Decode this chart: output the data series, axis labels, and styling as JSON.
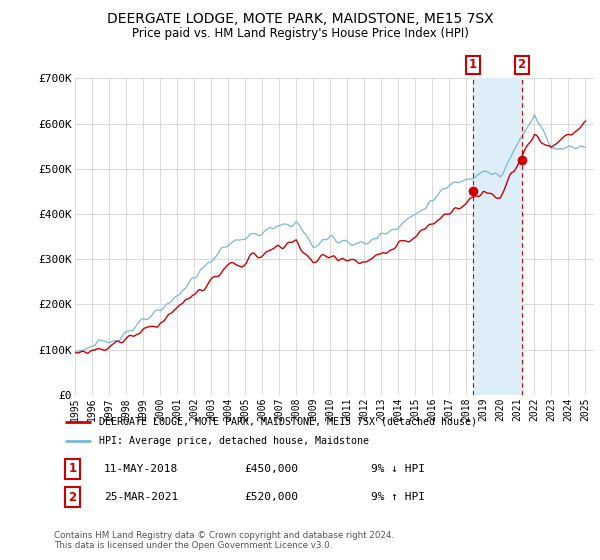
{
  "title": "DEERGATE LODGE, MOTE PARK, MAIDSTONE, ME15 7SX",
  "subtitle": "Price paid vs. HM Land Registry's House Price Index (HPI)",
  "legend_line1": "DEERGATE LODGE, MOTE PARK, MAIDSTONE, ME15 7SX (detached house)",
  "legend_line2": "HPI: Average price, detached house, Maidstone",
  "annotation1_date": "11-MAY-2018",
  "annotation1_price": "£450,000",
  "annotation1_hpi": "9% ↓ HPI",
  "annotation2_date": "25-MAR-2021",
  "annotation2_price": "£520,000",
  "annotation2_hpi": "9% ↑ HPI",
  "footer": "Contains HM Land Registry data © Crown copyright and database right 2024.\nThis data is licensed under the Open Government Licence v3.0.",
  "hpi_color": "#7ab8d9",
  "price_color": "#cc0000",
  "shade_color": "#ddeef8",
  "annotation_color": "#cc0000",
  "grid_color": "#cccccc",
  "bg_color": "#ffffff",
  "ylim": [
    0,
    700000
  ],
  "yticks": [
    0,
    100000,
    200000,
    300000,
    400000,
    500000,
    600000,
    700000
  ],
  "ytick_labels": [
    "£0",
    "£100K",
    "£200K",
    "£300K",
    "£400K",
    "£500K",
    "£600K",
    "£700K"
  ],
  "sale1_year": 2018.37,
  "sale1_price": 450000,
  "sale2_year": 2021.25,
  "sale2_price": 520000
}
